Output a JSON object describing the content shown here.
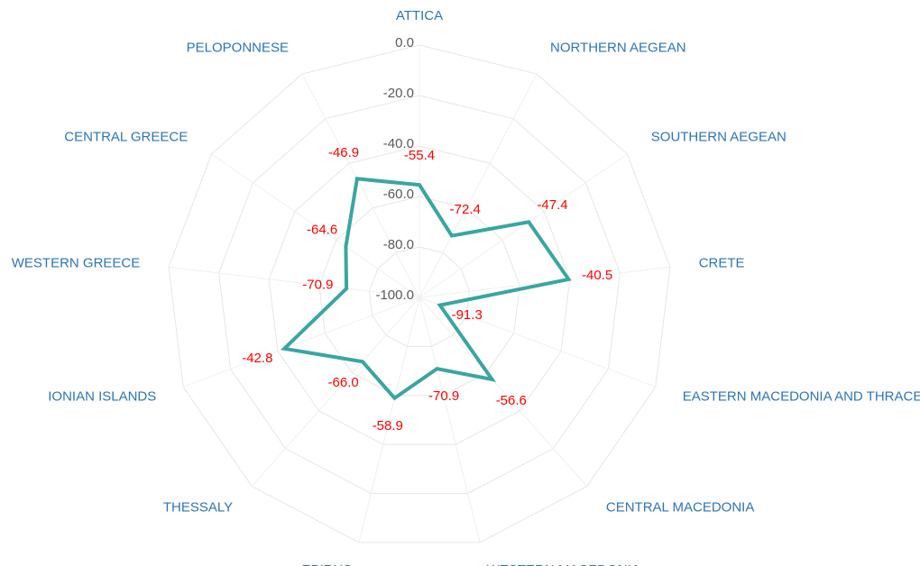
{
  "chart_data": {
    "type": "radar",
    "categories": [
      "ATTICA",
      "NORTHERN AEGEAN",
      "SOUTHERN AEGEAN",
      "CRETE",
      "EASTERN MACEDONIA AND THRACE",
      "CENTRAL MACEDONIA",
      "WESTERN MACEDONIA",
      "EPIRUS",
      "THESSALY",
      "IONIAN ISLANDS",
      "WESTERN GREECE",
      "CENTRAL GREECE",
      "PELOPONNESE"
    ],
    "values": [
      -55.4,
      -72.4,
      -47.4,
      -40.5,
      -91.3,
      -56.6,
      -70.9,
      -58.9,
      -66.0,
      -42.8,
      -70.9,
      -64.6,
      -46.9
    ],
    "value_labels": [
      "-55.4",
      "-72.4",
      "-47.4",
      "-40.5",
      "-91.3",
      "-56.6",
      "-70.9",
      "-58.9",
      "-66.0",
      "-42.8",
      "-70.9",
      "-64.6",
      "-46.9"
    ],
    "color": "#3aa6a0",
    "ylim": [
      -100,
      0
    ],
    "yticks": [
      {
        "value": -100,
        "label": "-100.0"
      },
      {
        "value": -80,
        "label": "-80.0"
      },
      {
        "value": -60,
        "label": "-60.0"
      },
      {
        "value": -40,
        "label": "-40.0"
      },
      {
        "value": -20,
        "label": "-20.0"
      },
      {
        "value": 0,
        "label": "0.0"
      }
    ],
    "grid": true
  }
}
